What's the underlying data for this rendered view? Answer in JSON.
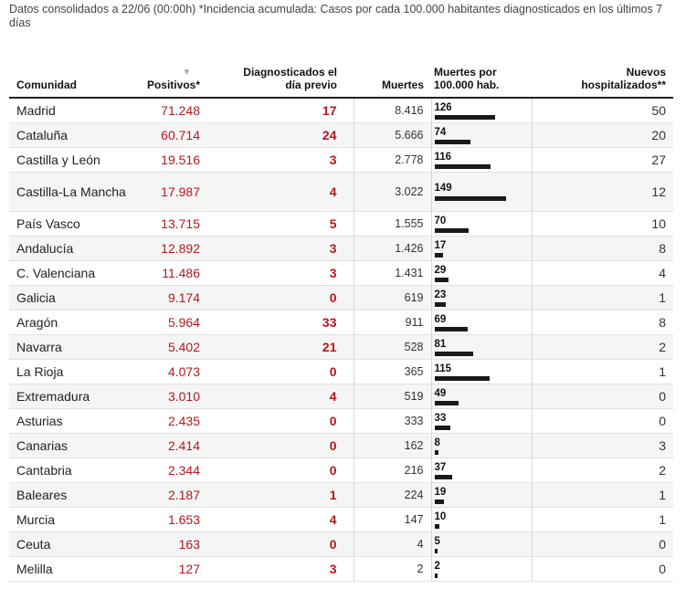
{
  "note": "Datos consolidados a 22/06 (00:00h) *Incidencia acumulada: Casos por cada 100.000 habitantes diagnosticados en los últimos 7 días",
  "headers": {
    "comunidad": "Comunidad",
    "sort_icon": "▼",
    "positivos": "Positivos*",
    "diag_line1": "Diagnosticados el",
    "diag_line2": "día previo",
    "muertes": "Muertes",
    "rate_line1": "Muertes por",
    "rate_line2": "100.000 hab.",
    "hosp_line1": "Nuevos",
    "hosp_line2": "hospitalizados**"
  },
  "rate_max": 149,
  "rows": [
    {
      "comunidad": "Madrid",
      "positivos": "71.248",
      "diagnosticados": "17",
      "muertes": "8.416",
      "muertes_100k": 126,
      "hospitalizados": "50"
    },
    {
      "comunidad": "Cataluña",
      "positivos": "60.714",
      "diagnosticados": "24",
      "muertes": "5.666",
      "muertes_100k": 74,
      "hospitalizados": "20"
    },
    {
      "comunidad": "Castilla y León",
      "positivos": "19.516",
      "diagnosticados": "3",
      "muertes": "2.778",
      "muertes_100k": 116,
      "hospitalizados": "27"
    },
    {
      "comunidad": "Castilla-La Mancha",
      "positivos": "17.987",
      "diagnosticados": "4",
      "muertes": "3.022",
      "muertes_100k": 149,
      "hospitalizados": "12"
    },
    {
      "comunidad": "País Vasco",
      "positivos": "13.715",
      "diagnosticados": "5",
      "muertes": "1.555",
      "muertes_100k": 70,
      "hospitalizados": "10"
    },
    {
      "comunidad": "Andalucía",
      "positivos": "12.892",
      "diagnosticados": "3",
      "muertes": "1.426",
      "muertes_100k": 17,
      "hospitalizados": "8"
    },
    {
      "comunidad": "C. Valenciana",
      "positivos": "11.486",
      "diagnosticados": "3",
      "muertes": "1.431",
      "muertes_100k": 29,
      "hospitalizados": "4"
    },
    {
      "comunidad": "Galicia",
      "positivos": "9.174",
      "diagnosticados": "0",
      "muertes": "619",
      "muertes_100k": 23,
      "hospitalizados": "1"
    },
    {
      "comunidad": "Aragón",
      "positivos": "5.964",
      "diagnosticados": "33",
      "muertes": "911",
      "muertes_100k": 69,
      "hospitalizados": "8"
    },
    {
      "comunidad": "Navarra",
      "positivos": "5.402",
      "diagnosticados": "21",
      "muertes": "528",
      "muertes_100k": 81,
      "hospitalizados": "2"
    },
    {
      "comunidad": "La Rioja",
      "positivos": "4.073",
      "diagnosticados": "0",
      "muertes": "365",
      "muertes_100k": 115,
      "hospitalizados": "1"
    },
    {
      "comunidad": "Extremadura",
      "positivos": "3.010",
      "diagnosticados": "4",
      "muertes": "519",
      "muertes_100k": 49,
      "hospitalizados": "0"
    },
    {
      "comunidad": "Asturias",
      "positivos": "2.435",
      "diagnosticados": "0",
      "muertes": "333",
      "muertes_100k": 33,
      "hospitalizados": "0"
    },
    {
      "comunidad": "Canarias",
      "positivos": "2.414",
      "diagnosticados": "0",
      "muertes": "162",
      "muertes_100k": 8,
      "hospitalizados": "3"
    },
    {
      "comunidad": "Cantabria",
      "positivos": "2.344",
      "diagnosticados": "0",
      "muertes": "216",
      "muertes_100k": 37,
      "hospitalizados": "2"
    },
    {
      "comunidad": "Baleares",
      "positivos": "2.187",
      "diagnosticados": "1",
      "muertes": "224",
      "muertes_100k": 19,
      "hospitalizados": "1"
    },
    {
      "comunidad": "Murcia",
      "positivos": "1.653",
      "diagnosticados": "4",
      "muertes": "147",
      "muertes_100k": 10,
      "hospitalizados": "1"
    },
    {
      "comunidad": "Ceuta",
      "positivos": "163",
      "diagnosticados": "0",
      "muertes": "4",
      "muertes_100k": 5,
      "hospitalizados": "0"
    },
    {
      "comunidad": "Melilla",
      "positivos": "127",
      "diagnosticados": "3",
      "muertes": "2",
      "muertes_100k": 2,
      "hospitalizados": "0"
    }
  ]
}
